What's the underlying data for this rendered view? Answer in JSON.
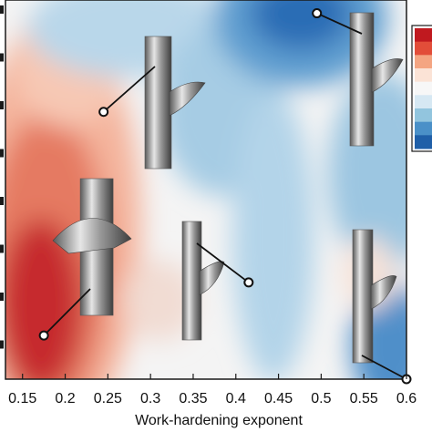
{
  "chart_data": {
    "type": "heatmap",
    "xlabel": "Work-hardening exponent",
    "ylabel": "",
    "x_ticks": [
      "0.15",
      "0.2",
      "0.25",
      "0.3",
      "0.35",
      "0.4",
      "0.45",
      "0.5",
      "0.55",
      "0.6"
    ],
    "x_range": [
      0.13,
      0.6
    ],
    "y_ticks_visible": false,
    "colorbar": {
      "visible": "partial, right edge, clipped",
      "colors": [
        "#c0191f",
        "#e24d39",
        "#f4a582",
        "#fbe3d6",
        "#f7f7f7",
        "#d6e8f3",
        "#92c5de",
        "#4a90c8",
        "#1f5fa8"
      ]
    },
    "grid": false,
    "inset_specimens": [
      {
        "id": "specimen-upper-left",
        "n": 0.245,
        "level": 0.705
      },
      {
        "id": "specimen-upper-right",
        "n": 0.495,
        "level": 0.965
      },
      {
        "id": "specimen-left",
        "n": 0.175,
        "level": 0.115
      },
      {
        "id": "specimen-middle",
        "n": 0.415,
        "level": 0.255
      },
      {
        "id": "specimen-lower-right",
        "n": 0.6,
        "level": 0.0
      }
    ]
  },
  "colors": {
    "red_dark": "#b2182b",
    "red": "#d6604d",
    "red_light": "#f4a582",
    "neutral": "#f7f7f7",
    "blue_light": "#92c5de",
    "blue": "#4393c3",
    "blue_dark": "#2166ac"
  }
}
